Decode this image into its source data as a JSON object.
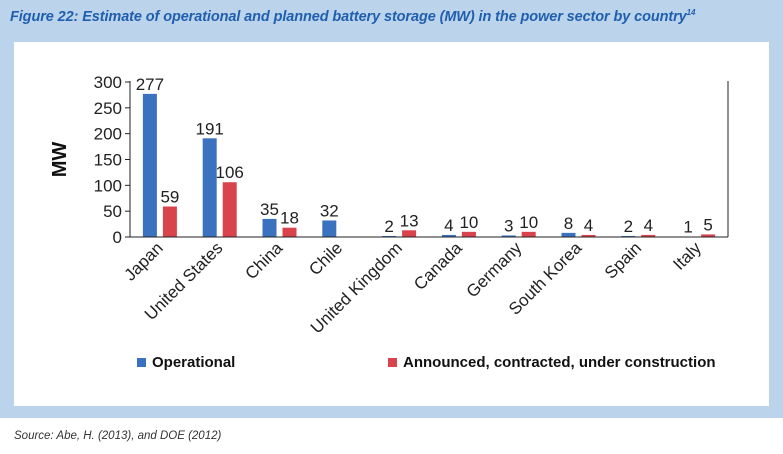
{
  "figure": {
    "title": "Figure 22: Estimate of operational and planned battery storage (MW) in the power sector by country",
    "title_sup": "14",
    "source": "Source: Abe, H. (2013), and DOE (2012)"
  },
  "colors": {
    "background": "#bcd3ec",
    "title": "#1f5fae",
    "operational": "#3a72c0",
    "announced": "#d9434b"
  },
  "chart_data": {
    "type": "bar",
    "title": "Estimate of operational and planned battery storage (MW) in the power sector by country",
    "xlabel": "",
    "ylabel": "MW",
    "ylim": [
      0,
      300
    ],
    "yticks": [
      0,
      50,
      100,
      150,
      200,
      250,
      300
    ],
    "grid": false,
    "legend_position": "bottom",
    "categories": [
      "Japan",
      "United States",
      "China",
      "Chile",
      "United Kingdom",
      "Canada",
      "Germany",
      "South Korea",
      "Spain",
      "Italy"
    ],
    "series": [
      {
        "name": "Operational",
        "color": "#3a72c0",
        "values": [
          277,
          191,
          35,
          32,
          2,
          4,
          3,
          8,
          2,
          1
        ]
      },
      {
        "name": "Announced, contracted, under construction",
        "color": "#d9434b",
        "values": [
          59,
          106,
          18,
          null,
          13,
          10,
          10,
          4,
          4,
          5
        ]
      }
    ]
  }
}
